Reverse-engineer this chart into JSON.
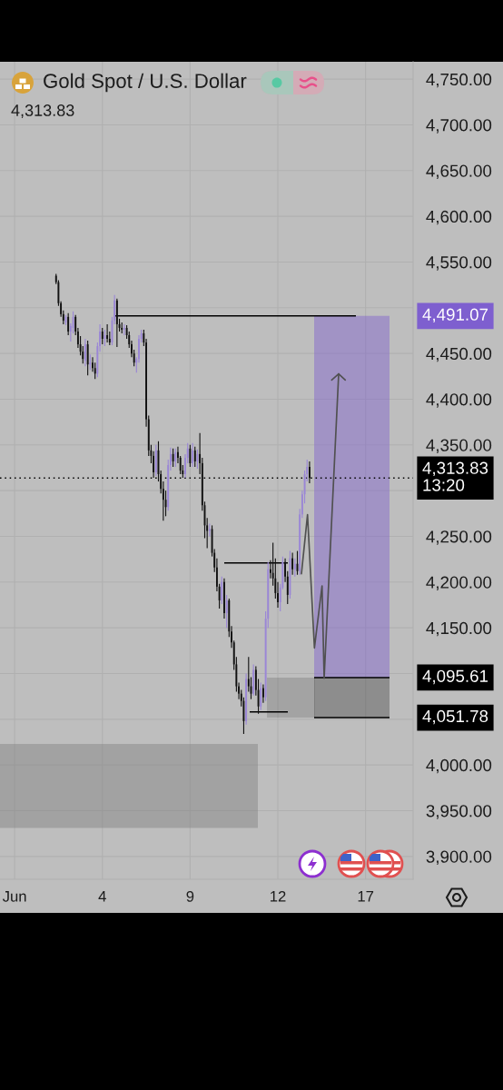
{
  "chart_data": {
    "type": "candlestick",
    "title": "Gold Spot / U.S. Dollar",
    "subtitle": "4,313.83",
    "categories": [
      "Jun",
      null,
      null,
      null,
      null,
      null,
      null,
      null,
      null,
      null,
      null,
      null,
      null,
      null,
      null,
      null,
      null,
      null,
      null,
      null,
      null,
      null,
      null,
      null,
      null,
      null,
      null,
      null,
      null,
      null,
      null,
      null,
      null,
      null,
      null,
      null,
      "4",
      null,
      null,
      null,
      null,
      null,
      null,
      null,
      null,
      null,
      null,
      null,
      null,
      null,
      null,
      null,
      null,
      null,
      null,
      null,
      null,
      null,
      null,
      null,
      null,
      null,
      null,
      null,
      null,
      null,
      null,
      null,
      null,
      null,
      null,
      null,
      "9",
      null,
      null,
      null,
      null,
      null,
      null,
      null,
      null,
      null,
      null,
      null,
      null,
      null,
      null,
      null,
      null,
      null,
      null,
      null,
      null,
      null,
      null,
      null,
      null,
      null,
      null,
      null,
      null,
      null,
      null,
      null,
      null,
      null,
      null,
      null,
      "12",
      null,
      null,
      null,
      null,
      null,
      null,
      null,
      null,
      null,
      null,
      null,
      null,
      null,
      null,
      null,
      null,
      null,
      null,
      null,
      null,
      null,
      null,
      null,
      null,
      null,
      null,
      null,
      null,
      null,
      null,
      null,
      null,
      null,
      null,
      null,
      "17",
      null,
      null,
      null,
      null,
      null,
      null,
      null,
      null,
      null,
      null,
      null,
      null,
      null,
      null,
      null,
      null,
      null,
      null,
      null
    ],
    "ohlc": [
      null,
      null,
      null,
      null,
      null,
      null,
      null,
      null,
      null,
      null,
      null,
      null,
      null,
      null,
      null,
      null,
      null,
      [
        4535,
        4537,
        4526,
        4528
      ],
      [
        4528,
        4530,
        4502,
        4505
      ],
      [
        4505,
        4507,
        4490,
        4493
      ],
      [
        4493,
        4497,
        4482,
        4486
      ],
      [
        4484,
        4492,
        4481,
        4490
      ],
      [
        4490,
        4494,
        4470,
        4474
      ],
      [
        4474,
        4483,
        4463,
        4480
      ],
      [
        4478,
        4496,
        4472,
        4490
      ],
      [
        4490,
        4492,
        4470,
        4474
      ],
      [
        4474,
        4478,
        4456,
        4460
      ],
      [
        4460,
        4469,
        4448,
        4452
      ],
      [
        4452,
        4458,
        4439,
        4444
      ],
      [
        4442,
        4466,
        4436,
        4460
      ],
      [
        4460,
        4464,
        4426,
        4438
      ],
      [
        4438,
        4449,
        4432,
        4440
      ],
      [
        4440,
        4446,
        4430,
        4434
      ],
      [
        4434,
        4440,
        4422,
        4428
      ],
      [
        4428,
        4462,
        4424,
        4458
      ],
      [
        4458,
        4482,
        4452,
        4474
      ],
      [
        4474,
        4478,
        4460,
        4466
      ],
      [
        4466,
        4476,
        4458,
        4470
      ],
      [
        4470,
        4482,
        4462,
        4466
      ],
      [
        4466,
        4474,
        4459,
        4462
      ],
      [
        4462,
        4490,
        4459,
        4486
      ],
      [
        4486,
        4514,
        4482,
        4508
      ],
      [
        4508,
        4510,
        4457,
        4482
      ],
      [
        4482,
        4488,
        4474,
        4478
      ],
      [
        4478,
        4484,
        4472,
        4476
      ],
      [
        4476,
        4482,
        4470,
        4478
      ],
      [
        4478,
        4481,
        4466,
        4470
      ],
      [
        4470,
        4474,
        4456,
        4460
      ],
      [
        4460,
        4464,
        4446,
        4450
      ],
      [
        4450,
        4454,
        4436,
        4440
      ],
      [
        4440,
        4446,
        4429,
        4444
      ],
      [
        4444,
        4470,
        4440,
        4466
      ],
      [
        4466,
        4476,
        4462,
        4472
      ],
      [
        4472,
        4476,
        4458,
        4462
      ],
      [
        4462,
        4466,
        4370,
        4378
      ],
      [
        4378,
        4382,
        4338,
        4344
      ],
      [
        4344,
        4350,
        4330,
        4338
      ],
      [
        4338,
        4343,
        4314,
        4320
      ],
      [
        4320,
        4350,
        4316,
        4344
      ],
      [
        4344,
        4354,
        4310,
        4318
      ],
      [
        4318,
        4322,
        4297,
        4302
      ],
      [
        4302,
        4310,
        4267,
        4290
      ],
      [
        4290,
        4300,
        4272,
        4282
      ],
      [
        4282,
        4334,
        4278,
        4328
      ],
      [
        4328,
        4347,
        4322,
        4340
      ],
      [
        4340,
        4346,
        4326,
        4332
      ],
      [
        4332,
        4346,
        4326,
        4342
      ],
      [
        4342,
        4348,
        4330,
        4336
      ],
      [
        4336,
        4338,
        4318,
        4322
      ],
      [
        4322,
        4328,
        4314,
        4318
      ],
      [
        4318,
        4340,
        4314,
        4336
      ],
      [
        4336,
        4352,
        4330,
        4346
      ],
      [
        4346,
        4350,
        4326,
        4330
      ],
      [
        4330,
        4352,
        4326,
        4344
      ],
      [
        4344,
        4348,
        4326,
        4332
      ],
      [
        4332,
        4345,
        4324,
        4340
      ],
      [
        4340,
        4363,
        4318,
        4330
      ],
      [
        4330,
        4336,
        4278,
        4284
      ],
      [
        4284,
        4288,
        4248,
        4262
      ],
      [
        4262,
        4270,
        4237,
        4256
      ],
      [
        4256,
        4264,
        4250,
        4258
      ],
      [
        4258,
        4262,
        4228,
        4232
      ],
      [
        4232,
        4236,
        4211,
        4216
      ],
      [
        4216,
        4226,
        4190,
        4195
      ],
      [
        4195,
        4198,
        4171,
        4180
      ],
      [
        4180,
        4206,
        4176,
        4200
      ],
      [
        4200,
        4204,
        4160,
        4166
      ],
      [
        4166,
        4186,
        4150,
        4180
      ],
      [
        4180,
        4182,
        4140,
        4146
      ],
      [
        4146,
        4152,
        4128,
        4134
      ],
      [
        4134,
        4136,
        4104,
        4110
      ],
      [
        4110,
        4118,
        4080,
        4086
      ],
      [
        4086,
        4090,
        4072,
        4078
      ],
      [
        4078,
        4082,
        4064,
        4070
      ],
      [
        4070,
        4074,
        4034,
        4048
      ],
      [
        4048,
        4100,
        4044,
        4094
      ],
      [
        4094,
        4118,
        4080,
        4086
      ],
      [
        4086,
        4096,
        4072,
        4078
      ],
      [
        4078,
        4110,
        4076,
        4104
      ],
      [
        4104,
        4108,
        4076,
        4082
      ],
      [
        4082,
        4094,
        4056,
        4064
      ],
      [
        4064,
        4090,
        4060,
        4084
      ],
      [
        4084,
        4088,
        4068,
        4074
      ],
      [
        4074,
        4168,
        4070,
        4160
      ],
      [
        4160,
        4222,
        4150,
        4214
      ],
      [
        4214,
        4224,
        4204,
        4210
      ],
      [
        4210,
        4243,
        4196,
        4204
      ],
      [
        4204,
        4226,
        4182,
        4188
      ],
      [
        4188,
        4200,
        4172,
        4178
      ],
      [
        4178,
        4198,
        4168,
        4194
      ],
      [
        4194,
        4228,
        4192,
        4222
      ],
      [
        4222,
        4226,
        4200,
        4206
      ],
      [
        4206,
        4212,
        4176,
        4186
      ],
      [
        4186,
        4234,
        4182,
        4226
      ],
      [
        4226,
        4232,
        4208,
        4214
      ],
      [
        4214,
        4226,
        4206,
        4220
      ],
      [
        4220,
        4234,
        4208,
        4212
      ],
      [
        4212,
        4280,
        4208,
        4274
      ],
      [
        4274,
        4300,
        4270,
        4296
      ],
      [
        4296,
        4322,
        4286,
        4318
      ],
      [
        4318,
        4334,
        4310,
        4326
      ],
      [
        4326,
        4332,
        4308,
        4313.83
      ],
      null,
      null,
      null,
      null,
      null,
      null,
      null,
      null,
      null,
      null,
      null,
      null,
      null,
      null,
      null,
      null,
      null,
      null,
      null,
      null,
      null,
      null,
      null,
      null,
      null,
      null,
      null,
      null,
      null,
      null,
      null,
      null,
      null,
      null,
      null,
      null,
      null,
      null,
      null,
      null,
      null,
      null
    ],
    "colors": [
      null,
      null,
      null,
      null,
      null,
      null,
      null,
      null,
      null,
      null,
      null,
      null,
      null,
      null,
      null,
      null,
      null,
      "#111111",
      "#111111",
      "#111111",
      "#111111",
      "#9a86d6",
      "#111111",
      "#9a86d6",
      "#9a86d6",
      "#111111",
      "#111111",
      "#111111",
      "#111111",
      "#9a86d6",
      "#111111",
      "#9a86d6",
      "#111111",
      "#111111",
      "#9a86d6",
      "#9a86d6",
      "#111111",
      "#9a86d6",
      "#111111",
      "#111111",
      "#9a86d6",
      "#9a86d6",
      "#111111",
      "#111111",
      "#111111",
      "#9a86d6",
      "#111111",
      "#111111",
      "#111111",
      "#111111",
      "#9a86d6",
      "#9a86d6",
      "#9a86d6",
      "#111111",
      "#111111",
      "#111111",
      "#111111",
      "#111111",
      "#9a86d6",
      "#111111",
      "#111111",
      "#111111",
      "#111111",
      "#9a86d6",
      "#9a86d6",
      "#111111",
      "#9a86d6",
      "#111111",
      "#111111",
      "#111111",
      "#9a86d6",
      "#9a86d6",
      "#111111",
      "#9a86d6",
      "#111111",
      "#9a86d6",
      "#111111",
      "#111111",
      "#111111",
      "#111111",
      "#9a86d6",
      "#111111",
      "#111111",
      "#111111",
      "#111111",
      "#9a86d6",
      "#111111",
      "#9a86d6",
      "#111111",
      "#111111",
      "#111111",
      "#111111",
      "#111111",
      "#111111",
      "#111111",
      "#9a86d6",
      "#111111",
      "#111111",
      "#9a86d6",
      "#111111",
      "#111111",
      "#9a86d6",
      "#111111",
      "#9a86d6",
      "#9a86d6",
      "#111111",
      "#111111",
      "#111111",
      "#111111",
      "#9a86d6",
      "#9a86d6",
      "#111111",
      "#111111",
      "#9a86d6",
      "#111111",
      "#9a86d6",
      "#111111",
      "#9a86d6",
      "#9a86d6",
      "#9a86d6",
      "#9a86d6",
      "#111111",
      null,
      null,
      null,
      null,
      null,
      null,
      null,
      null,
      null,
      null,
      null,
      null,
      null,
      null,
      null,
      null,
      null,
      null,
      null,
      null,
      null,
      null,
      null,
      null,
      null,
      null,
      null,
      null,
      null,
      null,
      null,
      null,
      null,
      null,
      null,
      null,
      null,
      null,
      null,
      null,
      null,
      null
    ],
    "ylim": [
      3875,
      4769
    ],
    "yticks": [
      {
        "value": 3900,
        "label": "3,900.00"
      },
      {
        "value": 3950,
        "label": "3,950.00"
      },
      {
        "value": 4000,
        "label": "4,000.00"
      },
      {
        "value": 4050,
        "label": null
      },
      {
        "value": 4100,
        "label": null
      },
      {
        "value": 4150,
        "label": "4,150.00"
      },
      {
        "value": 4200,
        "label": "4,200.00"
      },
      {
        "value": 4250,
        "label": "4,250.00"
      },
      {
        "value": 4300,
        "label": null
      },
      {
        "value": 4350,
        "label": "4,350.00"
      },
      {
        "value": 4400,
        "label": "4,400.00"
      },
      {
        "value": 4450,
        "label": "4,450.00"
      },
      {
        "value": 4500,
        "label": null
      },
      {
        "value": 4550,
        "label": "4,550.00"
      },
      {
        "value": 4600,
        "label": "4,600.00"
      },
      {
        "value": 4650,
        "label": "4,650.00"
      },
      {
        "value": 4700,
        "label": "4,700.00"
      },
      {
        "value": 4750,
        "label": "4,750.00"
      }
    ],
    "grid": true,
    "bands": [
      {
        "axis": "y",
        "from": 3931,
        "to": 4023,
        "color": "#808080"
      },
      {
        "axis": "y",
        "from": 4051.78,
        "to": 4095.61,
        "color": "#535353"
      },
      {
        "axis": "y",
        "from": 4095.61,
        "to": 4491.07,
        "color": "#7e5fcf",
        "label": "4,491.07"
      },
      {
        "axis": "y",
        "from": 4051.78,
        "to": 4095.61,
        "color": "#535353"
      }
    ],
    "ref_lines": [
      {
        "axis": "y",
        "value": 4491.07,
        "color": "#000000"
      },
      {
        "axis": "y",
        "value": 4313.83,
        "label": "4,313.83\n13:20",
        "color": "#000000",
        "line_style": "dotted"
      },
      {
        "axis": "y",
        "value": 4095.61,
        "label": "4,095.61",
        "color": "#000000"
      },
      {
        "axis": "y",
        "value": 4051.78,
        "label": "4,051.78",
        "color": "#000000"
      },
      {
        "axis": "y",
        "value": 4221,
        "color": "#000000"
      },
      {
        "axis": "y",
        "value": 4058,
        "color": "#000000"
      }
    ]
  }
}
